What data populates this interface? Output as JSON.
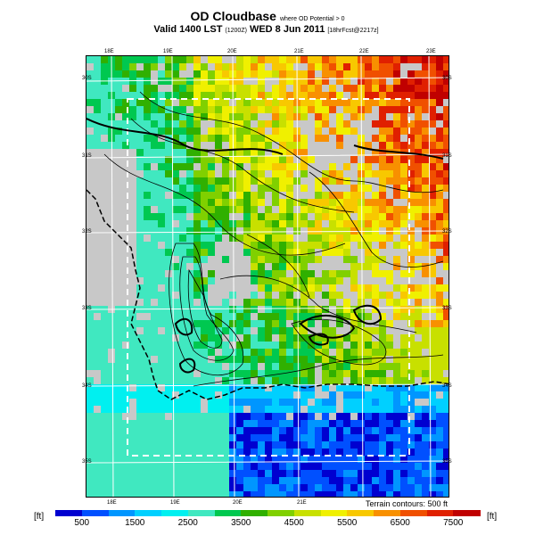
{
  "title": {
    "main": "OD Cloudbase",
    "qualifier": "where OD Potential > 0",
    "valid_prefix": "Valid 1400 LST",
    "valid_code": "(1200Z)",
    "valid_date": "WED 8 Jun 2011",
    "forecast": "[18hrFcst@2217z]"
  },
  "map": {
    "lon_labels_top": [
      "18E",
      "19E",
      "20E",
      "21E",
      "22E",
      "23E"
    ],
    "lon_labels_bottom": [
      "18E",
      "19E",
      "20E",
      "21E"
    ],
    "lat_labels_left": [
      "30S",
      "31S",
      "32S",
      "33S",
      "34S",
      "35S"
    ],
    "lat_labels_right": [
      "30S",
      "31S",
      "32S",
      "33S",
      "34S",
      "35S"
    ],
    "terrain_note": "Terrain contours: 500 ft",
    "no_data_color": "#c8c8c8"
  },
  "colorbar": {
    "unit_left": "[ft]",
    "unit_right": "[ft]",
    "tick_labels": [
      "500",
      "1500",
      "2500",
      "3500",
      "4500",
      "5500",
      "6500",
      "7500"
    ],
    "colors": [
      "#0000d0",
      "#0050ff",
      "#0096ff",
      "#00d0ff",
      "#00f0f0",
      "#40e8c0",
      "#00c850",
      "#30b000",
      "#80d000",
      "#c8e000",
      "#f0f000",
      "#f8c800",
      "#f89000",
      "#f05000",
      "#e02000",
      "#c00000"
    ]
  }
}
